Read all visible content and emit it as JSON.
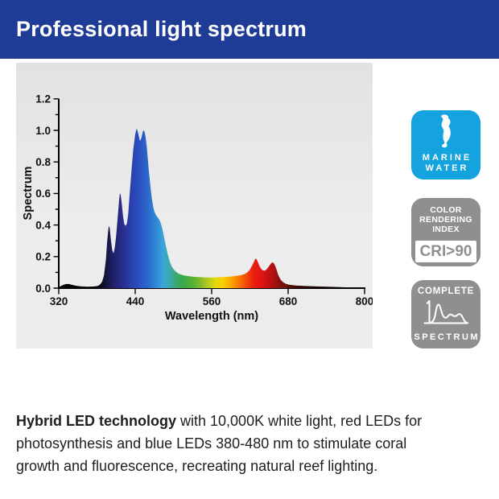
{
  "header": {
    "title": "Professional light spectrum",
    "bg_color": "#1e3c95",
    "text_color": "#ffffff"
  },
  "card": {
    "bg_color": "#e8e8e8"
  },
  "chart_data": {
    "type": "area",
    "title": "",
    "xlabel": "Wavelength (nm)",
    "ylabel": "Spectrum",
    "xlim": [
      320,
      800
    ],
    "ylim": [
      0,
      1.2
    ],
    "x_ticks": [
      320,
      440,
      560,
      680,
      800
    ],
    "y_ticks": [
      0.0,
      0.2,
      0.4,
      0.6,
      0.8,
      1.0,
      1.2
    ],
    "y_minor_ticks": [
      0.1,
      0.3,
      0.5,
      0.7,
      0.9,
      1.1
    ],
    "grid": false,
    "axis_color": "#000000",
    "fill": "wavelength-color-gradient",
    "series": [
      {
        "name": "spectrum",
        "points": [
          [
            320,
            0.005
          ],
          [
            324,
            0.015
          ],
          [
            328,
            0.022
          ],
          [
            332,
            0.026
          ],
          [
            336,
            0.026
          ],
          [
            340,
            0.022
          ],
          [
            346,
            0.016
          ],
          [
            352,
            0.012
          ],
          [
            358,
            0.01
          ],
          [
            366,
            0.009
          ],
          [
            374,
            0.01
          ],
          [
            380,
            0.013
          ],
          [
            384,
            0.02
          ],
          [
            388,
            0.04
          ],
          [
            391,
            0.08
          ],
          [
            394,
            0.18
          ],
          [
            396,
            0.3
          ],
          [
            398,
            0.38
          ],
          [
            399,
            0.395
          ],
          [
            400,
            0.38
          ],
          [
            402,
            0.3
          ],
          [
            404,
            0.24
          ],
          [
            406,
            0.22
          ],
          [
            408,
            0.26
          ],
          [
            410,
            0.33
          ],
          [
            413,
            0.47
          ],
          [
            415,
            0.57
          ],
          [
            416,
            0.6
          ],
          [
            417,
            0.595
          ],
          [
            419,
            0.53
          ],
          [
            421,
            0.45
          ],
          [
            423,
            0.405
          ],
          [
            425,
            0.395
          ],
          [
            427,
            0.41
          ],
          [
            429,
            0.47
          ],
          [
            431,
            0.58
          ],
          [
            434,
            0.74
          ],
          [
            437,
            0.88
          ],
          [
            440,
            0.975
          ],
          [
            442,
            1.01
          ],
          [
            443,
            1.005
          ],
          [
            445,
            0.975
          ],
          [
            447,
            0.94
          ],
          [
            448,
            0.935
          ],
          [
            450,
            0.955
          ],
          [
            452,
            0.995
          ],
          [
            454,
            1.0
          ],
          [
            456,
            0.965
          ],
          [
            458,
            0.9
          ],
          [
            460,
            0.81
          ],
          [
            462,
            0.72
          ],
          [
            464,
            0.64
          ],
          [
            466,
            0.57
          ],
          [
            468,
            0.52
          ],
          [
            470,
            0.485
          ],
          [
            473,
            0.46
          ],
          [
            476,
            0.445
          ],
          [
            479,
            0.425
          ],
          [
            482,
            0.385
          ],
          [
            485,
            0.33
          ],
          [
            488,
            0.27
          ],
          [
            491,
            0.215
          ],
          [
            494,
            0.17
          ],
          [
            497,
            0.14
          ],
          [
            500,
            0.12
          ],
          [
            504,
            0.103
          ],
          [
            508,
            0.092
          ],
          [
            514,
            0.083
          ],
          [
            520,
            0.078
          ],
          [
            530,
            0.073
          ],
          [
            540,
            0.07
          ],
          [
            552,
            0.068
          ],
          [
            564,
            0.068
          ],
          [
            576,
            0.07
          ],
          [
            588,
            0.073
          ],
          [
            598,
            0.077
          ],
          [
            606,
            0.082
          ],
          [
            612,
            0.09
          ],
          [
            616,
            0.1
          ],
          [
            620,
            0.118
          ],
          [
            623,
            0.14
          ],
          [
            626,
            0.165
          ],
          [
            628,
            0.182
          ],
          [
            629,
            0.188
          ],
          [
            631,
            0.18
          ],
          [
            633,
            0.16
          ],
          [
            635,
            0.14
          ],
          [
            637,
            0.125
          ],
          [
            640,
            0.113
          ],
          [
            643,
            0.11
          ],
          [
            646,
            0.118
          ],
          [
            649,
            0.133
          ],
          [
            652,
            0.15
          ],
          [
            654,
            0.16
          ],
          [
            656,
            0.163
          ],
          [
            658,
            0.155
          ],
          [
            660,
            0.138
          ],
          [
            662,
            0.115
          ],
          [
            664,
            0.09
          ],
          [
            666,
            0.07
          ],
          [
            669,
            0.05
          ],
          [
            672,
            0.038
          ],
          [
            676,
            0.028
          ],
          [
            680,
            0.023
          ],
          [
            686,
            0.019
          ],
          [
            694,
            0.016
          ],
          [
            704,
            0.014
          ],
          [
            716,
            0.012
          ],
          [
            730,
            0.01
          ],
          [
            746,
            0.008
          ],
          [
            762,
            0.006
          ],
          [
            778,
            0.004
          ],
          [
            792,
            0.002
          ],
          [
            800,
            0.001
          ]
        ]
      }
    ],
    "gradient_stops": [
      [
        320,
        "#000000"
      ],
      [
        383,
        "#06060e"
      ],
      [
        394,
        "#14143c"
      ],
      [
        404,
        "#1e1e64"
      ],
      [
        417,
        "#272b88"
      ],
      [
        430,
        "#2a3aa4"
      ],
      [
        443,
        "#2b4cbe"
      ],
      [
        457,
        "#2c63ca"
      ],
      [
        470,
        "#2f82d4"
      ],
      [
        483,
        "#3aa3dc"
      ],
      [
        493,
        "#3cabb4"
      ],
      [
        503,
        "#3aa878"
      ],
      [
        513,
        "#3aa84e"
      ],
      [
        526,
        "#4bae37"
      ],
      [
        540,
        "#77b92e"
      ],
      [
        554,
        "#b4ca1e"
      ],
      [
        566,
        "#e4d60c"
      ],
      [
        577,
        "#f7d100"
      ],
      [
        589,
        "#f9ab00"
      ],
      [
        601,
        "#f87e00"
      ],
      [
        613,
        "#f34f08"
      ],
      [
        625,
        "#ea2110"
      ],
      [
        637,
        "#e21414"
      ],
      [
        649,
        "#c41111"
      ],
      [
        661,
        "#9e1210"
      ],
      [
        673,
        "#75100b"
      ],
      [
        687,
        "#4a0c07"
      ],
      [
        703,
        "#2d0704"
      ],
      [
        726,
        "#170402"
      ],
      [
        762,
        "#070201"
      ],
      [
        800,
        "#000000"
      ]
    ]
  },
  "badges": {
    "marine": {
      "icon": "seahorse-icon",
      "lines": [
        "MARINE",
        "WATER"
      ],
      "bg_color": "#14a3de"
    },
    "cri": {
      "lines": [
        "COLOR",
        "RENDERING",
        "INDEX"
      ],
      "value": "CRI>90",
      "bg_color": "#8f8f8f"
    },
    "complete": {
      "top": "COMPLETE",
      "icon": "spectrum-curve-icon",
      "bottom": "SPECTRUM",
      "bg_color": "#8f8f8f"
    }
  },
  "description": {
    "bold": "Hybrid LED technology",
    "line1_rest": " with 10,000K white light, red LEDs for",
    "line2": "photosynthesis and blue LEDs 380-480 nm to stimulate coral",
    "line3": "growth and fluorescence, recreating natural reef lighting."
  }
}
